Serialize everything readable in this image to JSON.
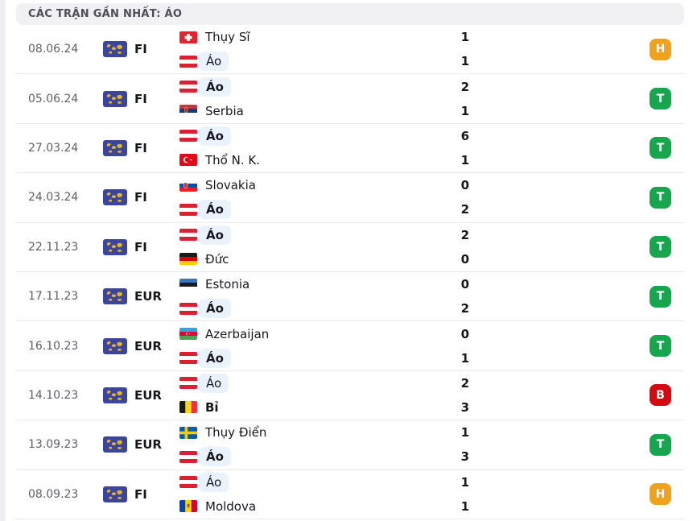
{
  "header": {
    "title": "CÁC TRẬN GẦN NHẤT: ÁO"
  },
  "badge_colors": {
    "T": "#17a54e",
    "B": "#d40a10",
    "H": "#efa21b"
  },
  "highlight_color": "#eaf2fc",
  "icons": {
    "competition": "world-map-icon"
  },
  "matches": [
    {
      "date": "08.06.24",
      "competition": "FI",
      "home": {
        "name": "Thụy Sĩ",
        "flag": "ch",
        "score": "1",
        "bold": false,
        "highlight": false
      },
      "away": {
        "name": "Áo",
        "flag": "at",
        "score": "1",
        "bold": false,
        "highlight": true
      },
      "result": "H"
    },
    {
      "date": "05.06.24",
      "competition": "FI",
      "home": {
        "name": "Áo",
        "flag": "at",
        "score": "2",
        "bold": true,
        "highlight": true
      },
      "away": {
        "name": "Serbia",
        "flag": "rs",
        "score": "1",
        "bold": false,
        "highlight": false
      },
      "result": "T"
    },
    {
      "date": "27.03.24",
      "competition": "FI",
      "home": {
        "name": "Áo",
        "flag": "at",
        "score": "6",
        "bold": true,
        "highlight": true
      },
      "away": {
        "name": "Thổ N. K.",
        "flag": "tr",
        "score": "1",
        "bold": false,
        "highlight": false
      },
      "result": "T"
    },
    {
      "date": "24.03.24",
      "competition": "FI",
      "home": {
        "name": "Slovakia",
        "flag": "sk",
        "score": "0",
        "bold": false,
        "highlight": false
      },
      "away": {
        "name": "Áo",
        "flag": "at",
        "score": "2",
        "bold": true,
        "highlight": true
      },
      "result": "T"
    },
    {
      "date": "22.11.23",
      "competition": "FI",
      "home": {
        "name": "Áo",
        "flag": "at",
        "score": "2",
        "bold": true,
        "highlight": true
      },
      "away": {
        "name": "Đức",
        "flag": "de",
        "score": "0",
        "bold": false,
        "highlight": false
      },
      "result": "T"
    },
    {
      "date": "17.11.23",
      "competition": "EUR",
      "home": {
        "name": "Estonia",
        "flag": "ee",
        "score": "0",
        "bold": false,
        "highlight": false
      },
      "away": {
        "name": "Áo",
        "flag": "at",
        "score": "2",
        "bold": true,
        "highlight": true
      },
      "result": "T"
    },
    {
      "date": "16.10.23",
      "competition": "EUR",
      "home": {
        "name": "Azerbaijan",
        "flag": "az",
        "score": "0",
        "bold": false,
        "highlight": false
      },
      "away": {
        "name": "Áo",
        "flag": "at",
        "score": "1",
        "bold": true,
        "highlight": true
      },
      "result": "T"
    },
    {
      "date": "14.10.23",
      "competition": "EUR",
      "home": {
        "name": "Áo",
        "flag": "at",
        "score": "2",
        "bold": false,
        "highlight": true
      },
      "away": {
        "name": "Bỉ",
        "flag": "be",
        "score": "3",
        "bold": true,
        "highlight": false
      },
      "result": "B"
    },
    {
      "date": "13.09.23",
      "competition": "EUR",
      "home": {
        "name": "Thụy Điển",
        "flag": "se",
        "score": "1",
        "bold": false,
        "highlight": false
      },
      "away": {
        "name": "Áo",
        "flag": "at",
        "score": "3",
        "bold": true,
        "highlight": true
      },
      "result": "T"
    },
    {
      "date": "08.09.23",
      "competition": "FI",
      "home": {
        "name": "Áo",
        "flag": "at",
        "score": "1",
        "bold": false,
        "highlight": true
      },
      "away": {
        "name": "Moldova",
        "flag": "md",
        "score": "1",
        "bold": false,
        "highlight": false
      },
      "result": "H"
    }
  ]
}
